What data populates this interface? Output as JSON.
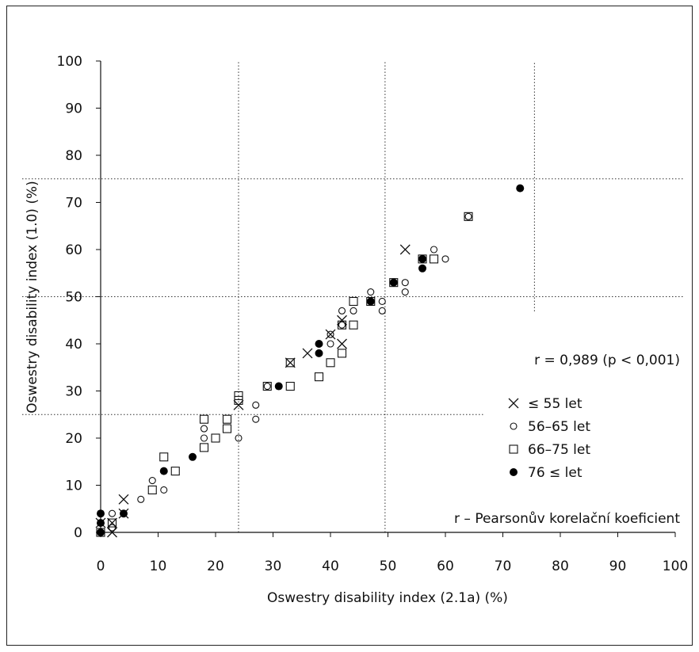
{
  "chart_data": {
    "type": "scatter",
    "xlabel": "Oswestry disability index (2.1a) (%)",
    "ylabel": "Oswestry disability index (1.0) (%)",
    "xlim": [
      0,
      100
    ],
    "ylim": [
      0,
      100
    ],
    "x_ticks": [
      "0",
      "10",
      "20",
      "30",
      "40",
      "50",
      "60",
      "70",
      "80",
      "90",
      "100"
    ],
    "y_ticks": [
      "0",
      "10",
      "20",
      "30",
      "40",
      "50",
      "60",
      "70",
      "80",
      "90",
      "100"
    ],
    "grid": false,
    "reference_lines": {
      "vertical": [
        24,
        49.5,
        75.5
      ],
      "horizontal": [
        25,
        50,
        75
      ]
    },
    "annotations": {
      "correlation": "r = 0,989 (p < 0,001)",
      "footnote": "r – Pearsonův korelační koeficient"
    },
    "legend_position": "right",
    "series": [
      {
        "name": "≤ 55 let",
        "marker": "x",
        "points": [
          [
            0,
            2
          ],
          [
            2,
            0
          ],
          [
            2,
            2
          ],
          [
            4,
            7
          ],
          [
            4,
            4
          ],
          [
            24,
            27
          ],
          [
            33,
            36
          ],
          [
            36,
            38
          ],
          [
            40,
            42
          ],
          [
            42,
            40
          ],
          [
            42,
            45
          ],
          [
            53,
            60
          ]
        ]
      },
      {
        "name": "56–65  let",
        "marker": "circle-open",
        "points": [
          [
            0,
            0
          ],
          [
            2,
            4
          ],
          [
            2,
            1
          ],
          [
            7,
            7
          ],
          [
            9,
            11
          ],
          [
            11,
            9
          ],
          [
            18,
            22
          ],
          [
            18,
            20
          ],
          [
            24,
            20
          ],
          [
            27,
            27
          ],
          [
            27,
            24
          ],
          [
            29,
            31
          ],
          [
            40,
            42
          ],
          [
            40,
            40
          ],
          [
            42,
            47
          ],
          [
            42,
            44
          ],
          [
            44,
            47
          ],
          [
            47,
            51
          ],
          [
            49,
            49
          ],
          [
            49,
            47
          ],
          [
            53,
            53
          ],
          [
            53,
            51
          ],
          [
            58,
            60
          ],
          [
            60,
            58
          ],
          [
            64,
            67
          ]
        ]
      },
      {
        "name": "66–75  let",
        "marker": "square-open",
        "points": [
          [
            0,
            0
          ],
          [
            2,
            2
          ],
          [
            9,
            9
          ],
          [
            11,
            16
          ],
          [
            13,
            13
          ],
          [
            18,
            24
          ],
          [
            18,
            18
          ],
          [
            20,
            20
          ],
          [
            22,
            24
          ],
          [
            22,
            22
          ],
          [
            24,
            29
          ],
          [
            24,
            28
          ],
          [
            29,
            31
          ],
          [
            33,
            36
          ],
          [
            33,
            31
          ],
          [
            38,
            33
          ],
          [
            40,
            36
          ],
          [
            42,
            44
          ],
          [
            42,
            38
          ],
          [
            44,
            49
          ],
          [
            44,
            44
          ],
          [
            47,
            49
          ],
          [
            51,
            53
          ],
          [
            56,
            58
          ],
          [
            58,
            58
          ],
          [
            64,
            67
          ]
        ]
      },
      {
        "name": "76 ≤  let",
        "marker": "circle-filled",
        "points": [
          [
            0,
            0
          ],
          [
            0,
            2
          ],
          [
            0,
            4
          ],
          [
            4,
            4
          ],
          [
            11,
            13
          ],
          [
            16,
            16
          ],
          [
            31,
            31
          ],
          [
            38,
            40
          ],
          [
            38,
            38
          ],
          [
            47,
            49
          ],
          [
            51,
            53
          ],
          [
            56,
            58
          ],
          [
            56,
            56
          ],
          [
            73,
            73
          ]
        ]
      }
    ]
  }
}
